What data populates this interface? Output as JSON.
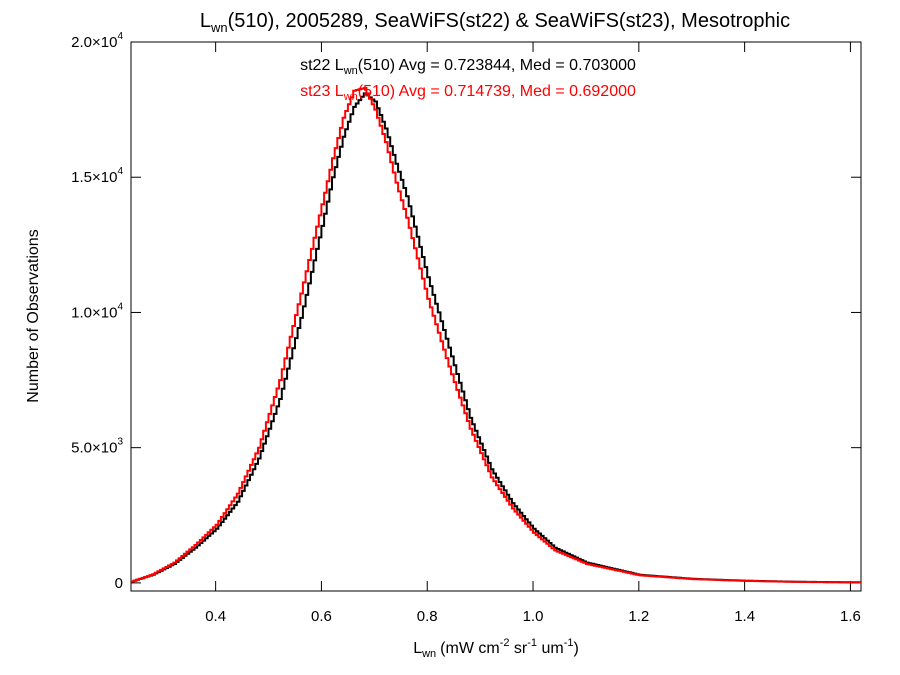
{
  "chart_data": {
    "type": "line",
    "title": {
      "base": "L",
      "sub": "wn",
      "rest": "(510), 2005289, SeaWiFS(st22) & SeaWiFS(st23), Mesotrophic"
    },
    "xlabel": {
      "base": "L",
      "sub": "wn",
      "unit": "(mW cm",
      "sup1": "-2",
      "mid1": " sr",
      "sup2": "-1",
      "mid2": " um",
      "sup3": "-1",
      "end": ")"
    },
    "ylabel": "Number of Observations",
    "xlim": [
      0.24,
      1.62
    ],
    "ylim": [
      -300,
      20000
    ],
    "grid": false,
    "legend_position": "top-center",
    "xticks": [
      {
        "value": 0.4,
        "label": "0.4"
      },
      {
        "value": 0.6,
        "label": "0.6"
      },
      {
        "value": 0.8,
        "label": "0.8"
      },
      {
        "value": 1.0,
        "label": "1.0"
      },
      {
        "value": 1.2,
        "label": "1.2"
      },
      {
        "value": 1.4,
        "label": "1.4"
      },
      {
        "value": 1.6,
        "label": "1.6"
      }
    ],
    "yticks": [
      {
        "value": 0,
        "mant": "0",
        "exp": ""
      },
      {
        "value": 5000,
        "mant": "5.0×10",
        "exp": "3"
      },
      {
        "value": 10000,
        "mant": "1.0×10",
        "exp": "4"
      },
      {
        "value": 15000,
        "mant": "1.5×10",
        "exp": "4"
      },
      {
        "value": 20000,
        "mant": "2.0×10",
        "exp": "4"
      }
    ],
    "series": [
      {
        "name": "st22",
        "color": "#000000",
        "label": {
          "pre": "st22 L",
          "sub": "wn",
          "post": "(510) Avg = 0.723844, Med = 0.703000"
        },
        "x": [
          0.24,
          0.28,
          0.32,
          0.36,
          0.4,
          0.44,
          0.48,
          0.52,
          0.56,
          0.6,
          0.62,
          0.64,
          0.66,
          0.68,
          0.7,
          0.72,
          0.74,
          0.76,
          0.78,
          0.8,
          0.84,
          0.88,
          0.92,
          0.96,
          1.0,
          1.04,
          1.1,
          1.2,
          1.3,
          1.4,
          1.5,
          1.62
        ],
        "y": [
          50,
          300,
          700,
          1300,
          2000,
          3000,
          4600,
          6800,
          9800,
          13200,
          15000,
          16500,
          17600,
          18100,
          17800,
          16800,
          15500,
          14300,
          12800,
          11300,
          8700,
          6100,
          4200,
          2950,
          2000,
          1300,
          750,
          300,
          150,
          80,
          40,
          20
        ]
      },
      {
        "name": "st23",
        "color": "#ff0000",
        "label": {
          "pre": "st23 L",
          "sub": "wn",
          "post": "(510) Avg = 0.714739, Med = 0.692000"
        },
        "x": [
          0.24,
          0.28,
          0.32,
          0.36,
          0.4,
          0.44,
          0.48,
          0.52,
          0.56,
          0.6,
          0.62,
          0.64,
          0.66,
          0.68,
          0.7,
          0.72,
          0.74,
          0.76,
          0.78,
          0.8,
          0.84,
          0.88,
          0.92,
          0.96,
          1.0,
          1.04,
          1.1,
          1.2,
          1.3,
          1.4,
          1.5,
          1.62
        ],
        "y": [
          50,
          320,
          750,
          1400,
          2150,
          3300,
          5000,
          7500,
          10700,
          14000,
          15700,
          17200,
          18200,
          18300,
          17500,
          16300,
          14800,
          13500,
          12000,
          10500,
          8000,
          5700,
          3900,
          2750,
          1850,
          1200,
          700,
          280,
          140,
          75,
          35,
          15
        ]
      }
    ]
  }
}
